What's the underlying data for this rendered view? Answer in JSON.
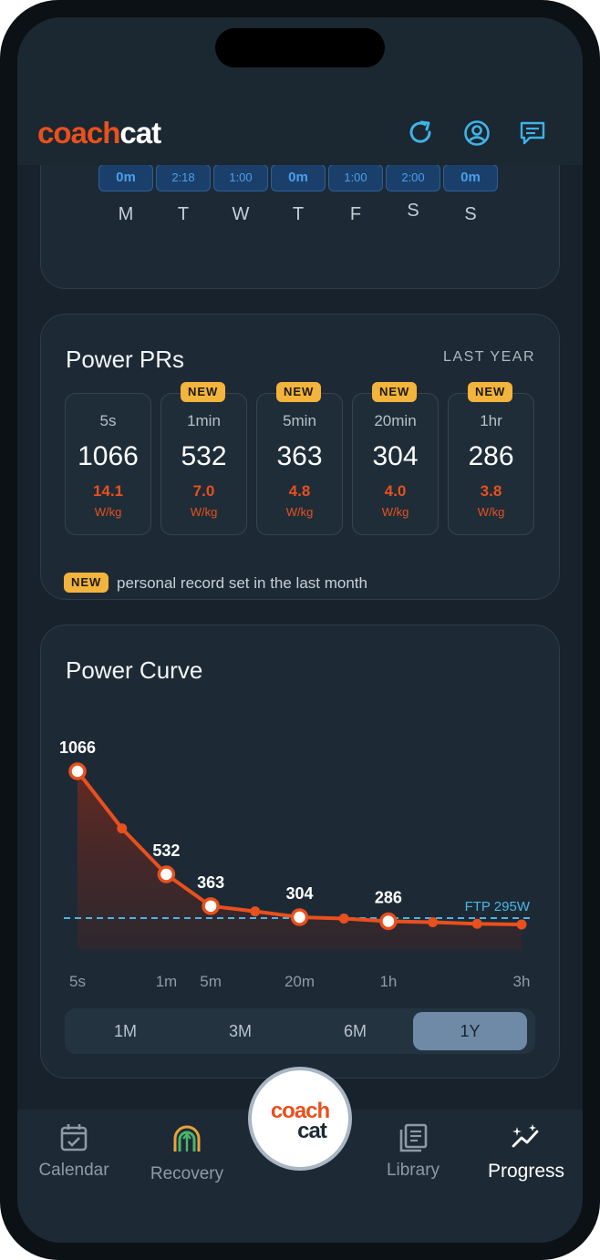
{
  "app": {
    "logo_part1": "coach",
    "logo_part2": "cat",
    "icons": [
      "refresh-icon",
      "account-icon",
      "chat-icon"
    ],
    "accent": "#e8501e",
    "icon_color": "#3fb3e6"
  },
  "week": {
    "durations": [
      "0m",
      "2:18",
      "1:00",
      "0m",
      "1:00",
      "2:00",
      "0m"
    ],
    "days": [
      "M",
      "T",
      "W",
      "T",
      "F",
      "S",
      "S"
    ]
  },
  "power_prs": {
    "title": "Power PRs",
    "range": "LAST YEAR",
    "items": [
      {
        "duration": "5s",
        "watts": "1066",
        "wkg": "14.1",
        "unit": "W/kg",
        "is_new": false
      },
      {
        "duration": "1min",
        "watts": "532",
        "wkg": "7.0",
        "unit": "W/kg",
        "is_new": true
      },
      {
        "duration": "5min",
        "watts": "363",
        "wkg": "4.8",
        "unit": "W/kg",
        "is_new": true
      },
      {
        "duration": "20min",
        "watts": "304",
        "wkg": "4.0",
        "unit": "W/kg",
        "is_new": true
      },
      {
        "duration": "1hr",
        "watts": "286",
        "wkg": "3.8",
        "unit": "W/kg",
        "is_new": true
      }
    ],
    "new_badge": "NEW",
    "note": "personal record set in the last month"
  },
  "power_curve": {
    "title": "Power Curve",
    "ftp_label": "FTP 295W",
    "range_tabs": [
      {
        "label": "1M",
        "active": false
      },
      {
        "label": "3M",
        "active": false
      },
      {
        "label": "6M",
        "active": false
      },
      {
        "label": "1Y",
        "active": true
      }
    ]
  },
  "chart_data": {
    "type": "line",
    "title": "Power Curve",
    "x_tick_labels": [
      "5s",
      "1m",
      "5m",
      "20m",
      "1h",
      "3h"
    ],
    "points": [
      {
        "duration": "5s",
        "watts": 1066,
        "label": "1066",
        "highlight": true
      },
      {
        "duration": "30s",
        "watts": 770,
        "label": "",
        "highlight": false
      },
      {
        "duration": "1m",
        "watts": 532,
        "label": "532",
        "highlight": true
      },
      {
        "duration": "5m",
        "watts": 363,
        "label": "363",
        "highlight": true
      },
      {
        "duration": "10m",
        "watts": 335,
        "label": "",
        "highlight": false
      },
      {
        "duration": "20m",
        "watts": 304,
        "label": "304",
        "highlight": true
      },
      {
        "duration": "40m",
        "watts": 298,
        "label": "",
        "highlight": false
      },
      {
        "duration": "1h",
        "watts": 286,
        "label": "286",
        "highlight": true
      },
      {
        "duration": "1.5h",
        "watts": 282,
        "label": "",
        "highlight": false
      },
      {
        "duration": "2h",
        "watts": 275,
        "label": "",
        "highlight": false
      },
      {
        "duration": "3h",
        "watts": 272,
        "label": "",
        "highlight": false
      }
    ],
    "ftp": 295,
    "ftp_label": "FTP 295W",
    "line_color": "#e8501e",
    "ftp_color": "#49b6e8",
    "grid": false
  },
  "nav": {
    "items": [
      {
        "label": "Calendar",
        "icon": "calendar-icon",
        "active": false
      },
      {
        "label": "Recovery",
        "icon": "recovery-icon",
        "active": false
      },
      {
        "label": "Library",
        "icon": "library-icon",
        "active": false
      },
      {
        "label": "Progress",
        "icon": "progress-icon",
        "active": true
      }
    ],
    "fab_part1": "coach",
    "fab_part2": "cat"
  }
}
